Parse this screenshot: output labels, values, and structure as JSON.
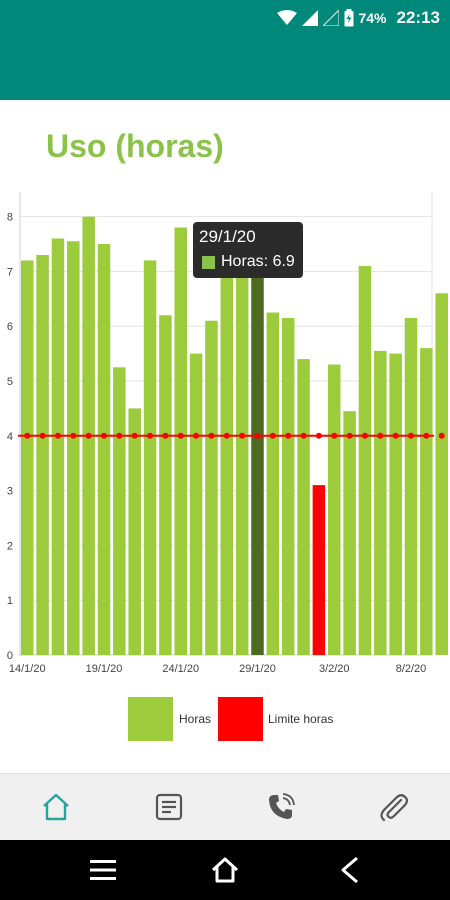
{
  "status_bar": {
    "battery_percent": "74%",
    "time": "22:13",
    "icons": [
      "wifi-icon",
      "signal-icon",
      "signal-empty-icon",
      "battery-charging-icon"
    ]
  },
  "page_title": "Uso (horas)",
  "tooltip": {
    "date": "29/1/20",
    "label": "Horas: 6.9"
  },
  "legend": {
    "items": [
      {
        "label": "Horas",
        "color": "#9ccc3c"
      },
      {
        "label": "Limite horas",
        "color": "#ff0000"
      }
    ]
  },
  "bottom_nav": {
    "items": [
      {
        "name": "home-icon",
        "active": true
      },
      {
        "name": "document-icon",
        "active": false
      },
      {
        "name": "phone-icon",
        "active": false
      },
      {
        "name": "attachment-icon",
        "active": false
      }
    ]
  },
  "system_nav": [
    "menu-icon",
    "home-outline-icon",
    "back-icon"
  ],
  "colors": {
    "header": "#00897b",
    "bar": "#9ccc3c",
    "bar_selected": "#4e6a21",
    "bar_below_limit": "#ff0000",
    "limit_line": "#ff0000",
    "title": "#8bc34a"
  },
  "chart_data": {
    "type": "bar",
    "x_start_date": "14/1/20",
    "x_ticks": [
      "14/1/20",
      "19/1/20",
      "24/1/20",
      "29/1/20",
      "3/2/20",
      "8/2/20"
    ],
    "y_ticks": [
      "0",
      "1",
      "2",
      "3",
      "4",
      "5",
      "6",
      "7",
      "8"
    ],
    "ylim": [
      0,
      8.5
    ],
    "grid": true,
    "legend_position": "bottom",
    "series": [
      {
        "name": "Horas",
        "values": [
          7.2,
          7.3,
          7.6,
          7.55,
          8.0,
          7.5,
          5.25,
          4.5,
          7.2,
          6.2,
          7.8,
          5.5,
          6.1,
          7.1,
          7.1,
          6.9,
          6.25,
          6.15,
          5.4,
          3.1,
          5.3,
          4.45,
          7.1,
          5.55,
          5.5,
          6.15,
          5.6,
          6.6
        ]
      },
      {
        "name": "Limite horas",
        "values": [
          4,
          4,
          4,
          4,
          4,
          4,
          4,
          4,
          4,
          4,
          4,
          4,
          4,
          4,
          4,
          4,
          4,
          4,
          4,
          4,
          4,
          4,
          4,
          4,
          4,
          4,
          4,
          4
        ]
      }
    ],
    "limit": 4,
    "selected_index": 15,
    "below_limit_index": 19
  }
}
